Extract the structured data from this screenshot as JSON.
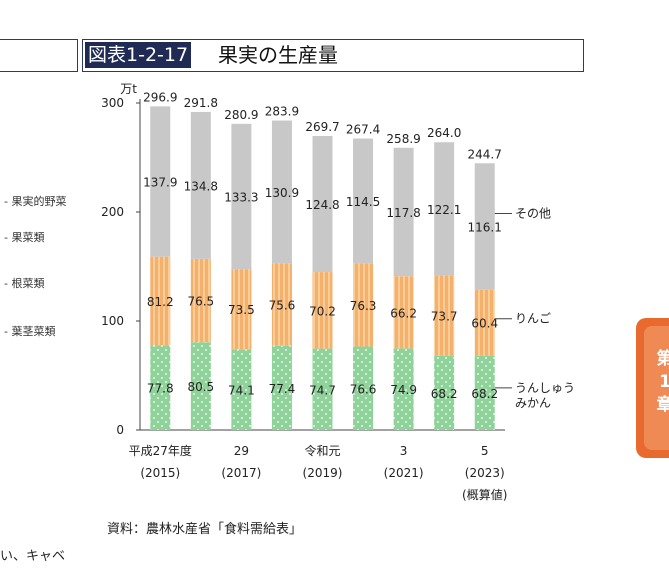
{
  "header": {
    "tag": "図表1-2-17",
    "title": "果実の生産量"
  },
  "left_panel": {
    "labels": [
      "果実的野菜",
      "果菜類",
      "根菜類",
      "葉茎菜類"
    ]
  },
  "chart_data": {
    "type": "bar",
    "stacked": true,
    "unit": "万t",
    "categories": [
      "2015",
      "2016",
      "2017",
      "2018",
      "2019",
      "2020",
      "2021",
      "2022",
      "2023"
    ],
    "x_tick_labels": [
      {
        "line1": "平成27年度",
        "line2": "(2015)"
      },
      {
        "line1": "29",
        "line2": "(2017)"
      },
      {
        "line1": "令和元",
        "line2": "(2019)"
      },
      {
        "line1": "3",
        "line2": "(2021)"
      },
      {
        "line1": "5",
        "line2": "(2023)",
        "line3": "(概算値)"
      }
    ],
    "series": [
      {
        "name": "うんしゅうみかん",
        "label_lines": [
          "うんしゅう",
          "みかん"
        ],
        "color": "#8fd39a",
        "values": [
          77.8,
          80.5,
          74.1,
          77.4,
          74.7,
          76.6,
          74.9,
          68.2,
          68.2
        ]
      },
      {
        "name": "りんご",
        "label_lines": [
          "りんご"
        ],
        "color": "#f5b06b",
        "values": [
          81.2,
          76.5,
          73.5,
          75.6,
          70.2,
          76.3,
          66.2,
          73.7,
          60.4
        ]
      },
      {
        "name": "その他",
        "label_lines": [
          "その他"
        ],
        "color": "#c8c8c8",
        "values": [
          137.9,
          134.8,
          133.3,
          130.9,
          124.8,
          114.5,
          117.8,
          122.1,
          116.1
        ]
      }
    ],
    "totals": [
      296.9,
      291.8,
      280.9,
      283.9,
      269.7,
      267.4,
      258.9,
      264.0,
      244.7
    ],
    "y_ticks": [
      0,
      100,
      200,
      300
    ],
    "ylim": [
      0,
      300
    ]
  },
  "footer": {
    "source": "資料：農林水産省「食料需給表」",
    "cut_text": "い、キャベ"
  },
  "side_tab": {
    "chars": [
      "第",
      "1",
      "章"
    ]
  }
}
